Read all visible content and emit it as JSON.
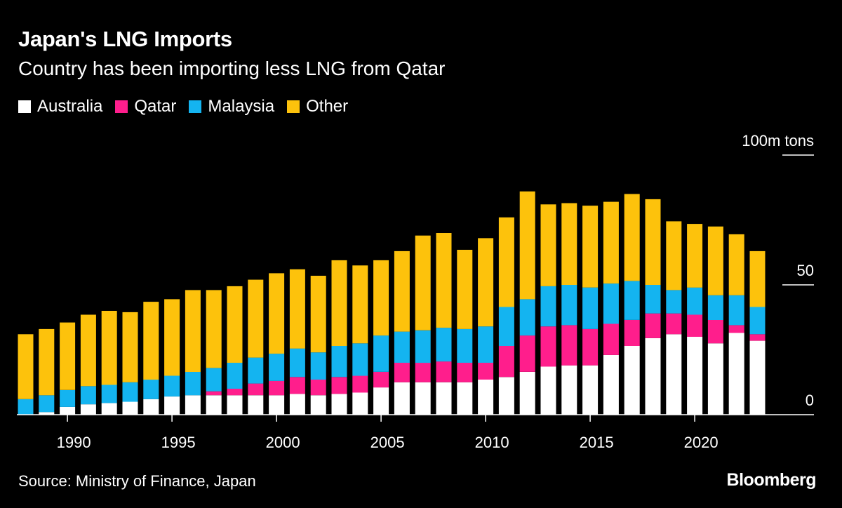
{
  "chart_data": {
    "type": "bar",
    "stacked": true,
    "title": "Japan's LNG Imports",
    "subtitle": "Country has been importing less LNG from Qatar",
    "y_unit_label": "100m tons",
    "ylim": [
      0,
      100
    ],
    "y_ticks": [
      {
        "value": 0,
        "label": "0"
      },
      {
        "value": 50,
        "label": "50"
      },
      {
        "value": 100,
        "label": "100m tons"
      }
    ],
    "x_ticks": [
      "1990",
      "1995",
      "2000",
      "2005",
      "2010",
      "2015",
      "2020"
    ],
    "grid": false,
    "legend_position": "top-left",
    "categories": [
      1988,
      1989,
      1990,
      1991,
      1992,
      1993,
      1994,
      1995,
      1996,
      1997,
      1998,
      1999,
      2000,
      2001,
      2002,
      2003,
      2004,
      2005,
      2006,
      2007,
      2008,
      2009,
      2010,
      2011,
      2012,
      2013,
      2014,
      2015,
      2016,
      2017,
      2018,
      2019,
      2020,
      2021,
      2022,
      2023
    ],
    "series": [
      {
        "name": "Australia",
        "color": "#ffffff",
        "values": [
          0,
          1,
          3,
          4,
          4.5,
          5,
          6,
          7,
          7.5,
          7.5,
          7.5,
          7.5,
          7.5,
          8,
          7.5,
          8,
          8.5,
          10.5,
          12.5,
          12.5,
          12.5,
          12.5,
          13.5,
          14.5,
          16.5,
          18.5,
          19,
          19,
          23,
          26.5,
          29.5,
          31,
          30,
          27.5,
          31.5,
          28.5
        ]
      },
      {
        "name": "Qatar",
        "color": "#ff1e8c",
        "values": [
          0,
          0,
          0,
          0,
          0,
          0,
          0,
          0,
          0,
          1.5,
          2.5,
          4.5,
          5.5,
          6.5,
          6,
          6.5,
          6.5,
          6,
          7.5,
          7.5,
          8,
          7.5,
          6.5,
          12,
          14,
          15.5,
          15.5,
          14,
          12,
          10,
          9.5,
          8,
          8.5,
          9,
          3,
          2.5
        ]
      },
      {
        "name": "Malaysia",
        "color": "#14b4f0",
        "values": [
          6,
          6.5,
          6.5,
          7,
          7,
          7.5,
          7.5,
          8,
          9,
          9,
          10,
          10,
          10.5,
          11,
          10.5,
          12,
          12.5,
          14,
          12,
          12.5,
          13,
          13,
          14,
          15,
          14,
          15.5,
          15.5,
          16,
          15.5,
          15,
          11,
          9,
          10.5,
          9.5,
          11.5,
          10.5
        ]
      },
      {
        "name": "Other",
        "color": "#fdc20c",
        "values": [
          25,
          25.5,
          26,
          27.5,
          28.5,
          27,
          30,
          29.5,
          31.5,
          30,
          29.5,
          30,
          31,
          30.5,
          29.5,
          33,
          30,
          29,
          31,
          36.5,
          36.5,
          30.5,
          34,
          34.5,
          41.5,
          31.5,
          31.5,
          31.5,
          31.5,
          33.5,
          33,
          26.5,
          24.5,
          26.5,
          23.5,
          21.5
        ]
      }
    ]
  },
  "source": "Source: Ministry of Finance, Japan",
  "logo": "Bloomberg"
}
